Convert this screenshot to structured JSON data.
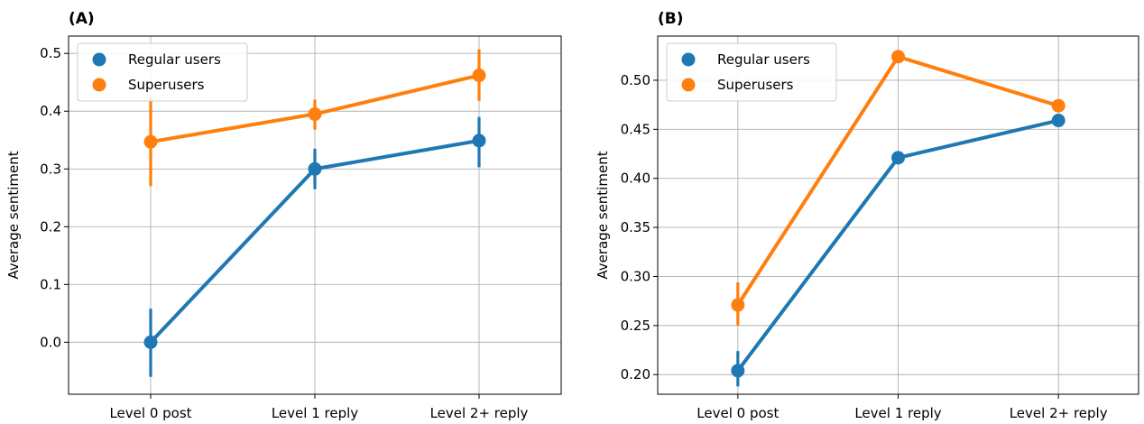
{
  "chart_data": [
    {
      "type": "line",
      "panel_label": "(A)",
      "categories": [
        "Level 0 post",
        "Level 1 reply",
        "Level 2+ reply"
      ],
      "ylabel": "Average sentiment",
      "xlabel": "",
      "ylim": [
        -0.09,
        0.53
      ],
      "yticks": [
        0.0,
        0.1,
        0.2,
        0.3,
        0.4,
        0.5
      ],
      "ytick_labels": [
        "0.0",
        "0.1",
        "0.2",
        "0.3",
        "0.4",
        "0.5"
      ],
      "grid": true,
      "legend_position": "top-left",
      "series": [
        {
          "name": "Regular users",
          "color": "#1f77b4",
          "values": [
            0.0,
            0.3,
            0.349
          ],
          "ci_low": [
            -0.06,
            0.265,
            0.303
          ],
          "ci_high": [
            0.058,
            0.335,
            0.39
          ]
        },
        {
          "name": "Superusers",
          "color": "#ff7f0e",
          "values": [
            0.347,
            0.395,
            0.462
          ],
          "ci_low": [
            0.27,
            0.368,
            0.418
          ],
          "ci_high": [
            0.425,
            0.42,
            0.507
          ]
        }
      ]
    },
    {
      "type": "line",
      "panel_label": "(B)",
      "categories": [
        "Level 0 post",
        "Level 1 reply",
        "Level 2+ reply"
      ],
      "ylabel": "Average sentiment",
      "xlabel": "",
      "ylim": [
        0.18,
        0.545
      ],
      "yticks": [
        0.2,
        0.25,
        0.3,
        0.35,
        0.4,
        0.45,
        0.5
      ],
      "ytick_labels": [
        "0.20",
        "0.25",
        "0.30",
        "0.35",
        "0.40",
        "0.45",
        "0.50"
      ],
      "grid": true,
      "legend_position": "top-left",
      "series": [
        {
          "name": "Regular users",
          "color": "#1f77b4",
          "values": [
            0.204,
            0.421,
            0.459
          ],
          "ci_low": [
            0.188,
            0.421,
            0.459
          ],
          "ci_high": [
            0.224,
            0.421,
            0.459
          ]
        },
        {
          "name": "Superusers",
          "color": "#ff7f0e",
          "values": [
            0.271,
            0.524,
            0.474
          ],
          "ci_low": [
            0.25,
            0.524,
            0.474
          ],
          "ci_high": [
            0.294,
            0.524,
            0.474
          ]
        }
      ]
    }
  ]
}
